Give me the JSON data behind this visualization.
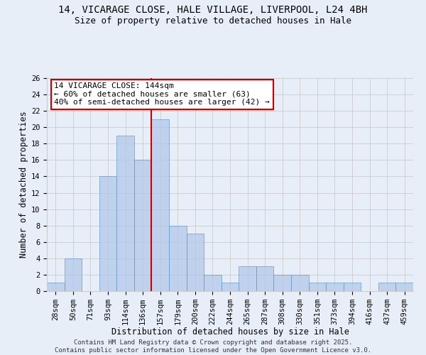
{
  "title_line1": "14, VICARAGE CLOSE, HALE VILLAGE, LIVERPOOL, L24 4BH",
  "title_line2": "Size of property relative to detached houses in Hale",
  "xlabel": "Distribution of detached houses by size in Hale",
  "ylabel": "Number of detached properties",
  "categories": [
    "28sqm",
    "50sqm",
    "71sqm",
    "93sqm",
    "114sqm",
    "136sqm",
    "157sqm",
    "179sqm",
    "200sqm",
    "222sqm",
    "244sqm",
    "265sqm",
    "287sqm",
    "308sqm",
    "330sqm",
    "351sqm",
    "373sqm",
    "394sqm",
    "416sqm",
    "437sqm",
    "459sqm"
  ],
  "values": [
    1,
    4,
    0,
    14,
    19,
    16,
    21,
    8,
    7,
    2,
    1,
    3,
    3,
    2,
    2,
    1,
    1,
    1,
    0,
    1,
    1
  ],
  "bar_color": "#aec6e8",
  "bar_edge_color": "#5a8fc2",
  "bar_alpha": 0.7,
  "vline_index": 5.5,
  "vline_color": "#cc0000",
  "annotation_text": "14 VICARAGE CLOSE: 144sqm\n← 60% of detached houses are smaller (63)\n40% of semi-detached houses are larger (42) →",
  "annotation_box_color": "#ffffff",
  "annotation_border_color": "#cc0000",
  "ylim": [
    0,
    26
  ],
  "yticks": [
    0,
    2,
    4,
    6,
    8,
    10,
    12,
    14,
    16,
    18,
    20,
    22,
    24,
    26
  ],
  "grid_color": "#cccccc",
  "background_color": "#e8eef8",
  "footer_text": "Contains HM Land Registry data © Crown copyright and database right 2025.\nContains public sector information licensed under the Open Government Licence v3.0.",
  "title_fontsize": 10,
  "subtitle_fontsize": 9,
  "axis_label_fontsize": 8.5,
  "tick_fontsize": 7.5,
  "annotation_fontsize": 8,
  "footer_fontsize": 6.5
}
